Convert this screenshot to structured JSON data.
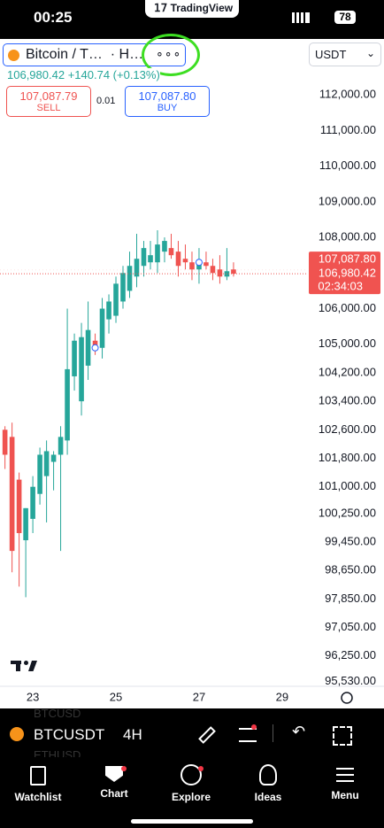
{
  "status_bar": {
    "time": "00:25",
    "app": "TradingView",
    "battery": "78"
  },
  "header": {
    "symbol": "Bitcoin / T…  · H…",
    "currency": "USDT",
    "quote": "106,980.42",
    "change": "+140.74 (+0.13%)",
    "sell_price": "107,087.79",
    "sell": "SELL",
    "spread": "0.01",
    "buy_price": "107,087.80",
    "buy": "BUY"
  },
  "chart_data": {
    "type": "candlestick",
    "x": [
      22.33,
      22.5,
      22.67,
      22.83,
      23,
      23.17,
      23.33,
      23.5,
      23.67,
      23.83,
      24,
      24.17,
      24.33,
      24.5,
      24.67,
      24.83,
      25,
      25.17,
      25.33,
      25.5,
      25.67,
      25.83,
      26,
      26.17,
      26.33,
      26.5,
      26.67,
      26.83,
      27,
      27.17,
      27.33,
      27.5,
      27.67,
      27.83
    ],
    "open": [
      102600,
      102400,
      101200,
      99500,
      100100,
      100800,
      101300,
      101700,
      101900,
      102300,
      104100,
      103400,
      104400,
      105100,
      104900,
      105700,
      105800,
      106200,
      106500,
      106900,
      107200,
      107300,
      107300,
      107600,
      107700,
      107600,
      107400,
      107300,
      107100,
      107300,
      107200,
      107100,
      106900,
      107100
    ],
    "high": [
      102700,
      102800,
      101400,
      100400,
      101300,
      102100,
      102300,
      102000,
      102700,
      106000,
      105300,
      105600,
      106200,
      105300,
      106300,
      106400,
      106900,
      107200,
      107600,
      108100,
      107900,
      107900,
      108200,
      108000,
      108100,
      107900,
      107800,
      107600,
      107700,
      107600,
      107400,
      107500,
      107700,
      107300
    ],
    "low": [
      101500,
      98600,
      98200,
      97900,
      99700,
      100500,
      100000,
      100900,
      99200,
      101900,
      103700,
      103000,
      104000,
      104700,
      104600,
      105300,
      105600,
      106000,
      106300,
      106600,
      106900,
      107100,
      107000,
      107300,
      107400,
      106900,
      107100,
      106800,
      106700,
      107100,
      106800,
      106700,
      106800,
      106900
    ],
    "close": [
      101900,
      99200,
      99700,
      100400,
      101000,
      101900,
      102000,
      101900,
      102400,
      104300,
      105100,
      105200,
      105400,
      104900,
      106000,
      106200,
      106700,
      107000,
      107200,
      107400,
      107700,
      107500,
      107800,
      107900,
      107500,
      107200,
      107300,
      107100,
      107300,
      107200,
      107000,
      106900,
      107050,
      106980
    ],
    "up_color": "#26a69a",
    "down_color": "#ef5350",
    "xlim": [
      22.21,
      29.62
    ],
    "xticks": [
      23,
      25,
      27,
      29
    ],
    "ylim": [
      95400,
      112500
    ],
    "yticks": [
      {
        "value": 112000,
        "label": "112,000.00"
      },
      {
        "value": 111000,
        "label": "111,000.00"
      },
      {
        "value": 110000,
        "label": "110,000.00"
      },
      {
        "value": 109000,
        "label": "109,000.00"
      },
      {
        "value": 108000,
        "label": "108,000.00"
      },
      {
        "value": 106000,
        "label": "106,000.00"
      },
      {
        "value": 105000,
        "label": "105,000.00"
      },
      {
        "value": 104200,
        "label": "104,200.00"
      },
      {
        "value": 103400,
        "label": "103,400.00"
      },
      {
        "value": 102600,
        "label": "102,600.00"
      },
      {
        "value": 101800,
        "label": "101,800.00"
      },
      {
        "value": 101000,
        "label": "101,000.00"
      },
      {
        "value": 100250,
        "label": "100,250.00"
      },
      {
        "value": 99450,
        "label": "99,450.00"
      },
      {
        "value": 98650,
        "label": "98,650.00"
      },
      {
        "value": 97850,
        "label": "97,850.00"
      },
      {
        "value": 97050,
        "label": "97,050.00"
      },
      {
        "value": 96250,
        "label": "96,250.00"
      },
      {
        "value": 95530,
        "label": "95,530.00"
      }
    ],
    "price_labels": [
      {
        "value": 107087.8,
        "label": "107,087.80"
      },
      {
        "value": 106980.42,
        "label": "106,980.42"
      }
    ],
    "countdown": "02:34:03"
  },
  "toolbar": {
    "symbol": "BTCUSDT",
    "interval": "4H",
    "ghost_symbols": [
      "BTCUSD",
      "ETHUSD"
    ]
  },
  "tabs": [
    "Watchlist",
    "Chart",
    "Explore",
    "Ideas",
    "Menu"
  ]
}
